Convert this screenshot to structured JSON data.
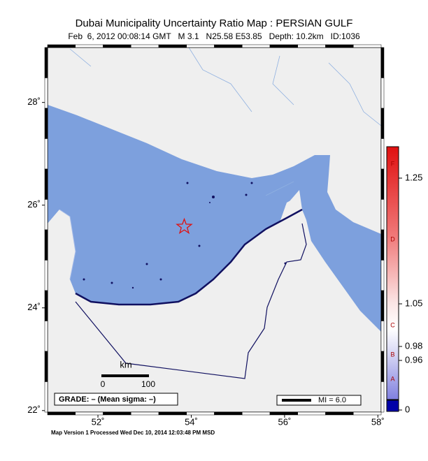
{
  "title": "Dubai Municipality Uncertainty Ratio Map : PERSIAN GULF",
  "subtitle": "Feb  6, 2012 00:08:14 GMT   M 3.1   N25.58 E53.85   Depth: 10.2km   ID:1036",
  "map": {
    "lonlim": [
      50.92,
      58.07
    ],
    "latlim": [
      21.97,
      29.07
    ],
    "lon_ticks": [
      {
        "value": 52,
        "label": "52˚"
      },
      {
        "value": 54,
        "label": "54˚"
      },
      {
        "value": 56,
        "label": "56˚"
      },
      {
        "value": 58,
        "label": "58˚"
      }
    ],
    "lat_ticks": [
      {
        "value": 28,
        "label": "28˚"
      },
      {
        "value": 26,
        "label": "26˚"
      },
      {
        "value": 24,
        "label": "24˚"
      },
      {
        "value": 22,
        "label": "22˚"
      }
    ],
    "epicenter": {
      "lat": 25.58,
      "lon": 53.85
    },
    "sea_color": "#7da0dd",
    "land_color": "#efefef"
  },
  "colorbar": {
    "ticks": [
      1.25,
      1.05,
      0.98,
      0.96,
      0
    ],
    "grades": [
      "F",
      "D",
      "C",
      "B",
      "A"
    ]
  },
  "scale_bar": {
    "unit": "km",
    "ticks": [
      0,
      100
    ]
  },
  "grade_box": "GRADE: – (Mean sigma: –)",
  "legend": "MI = 6.0",
  "footer": "Map Version 1 Processed Wed Dec 10, 2014 12:03:48 PM MSD"
}
